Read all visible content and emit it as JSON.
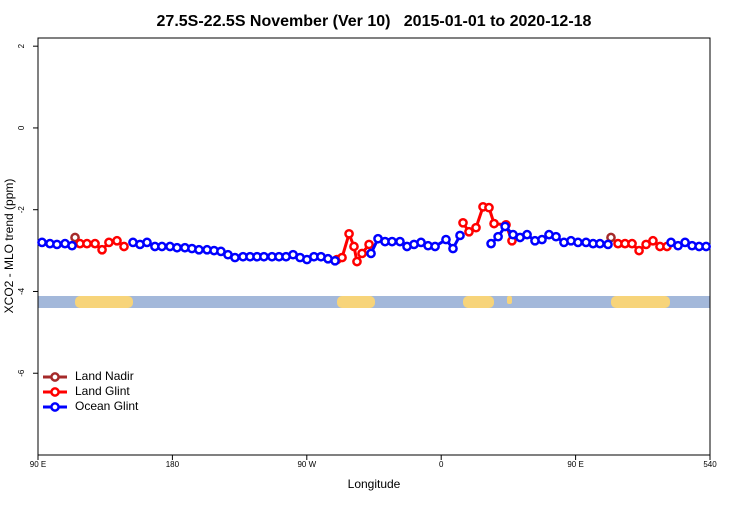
{
  "chart_data": {
    "type": "line",
    "title": "27.5S-22.5S November (Ver 10)   2015-01-01 to 2020-12-18",
    "x_label": "Longitude",
    "y_label": "XCO2 - MLO trend (ppm)",
    "xlim": [
      90,
      540
    ],
    "ylim": [
      -8,
      2.2
    ],
    "xticks": [
      {
        "value": 90,
        "label": "90 E"
      },
      180,
      {
        "value": 270,
        "label": "90 W"
      },
      {
        "value": 360,
        "label": "0"
      },
      {
        "value": 450,
        "label": "90 E"
      },
      540
    ],
    "yticks": [
      2,
      0,
      -2,
      -4,
      -6
    ],
    "legend": "bottom-left",
    "series": [
      {
        "name": "Land Nadir",
        "color": "#a52a2a",
        "x": [
          114.8,
          300,
          473.7
        ],
        "values": [
          -2.68,
          null,
          -2.68
        ]
      },
      {
        "name": "Land Glint",
        "color": "#ff0000",
        "x": [
          118.1,
          122.8,
          128.2,
          132.9,
          137.5,
          142.9,
          147.6,
          150,
          290.2,
          293.6,
          298.3,
          301.6,
          303.6,
          307.0,
          311.7,
          340,
          374.6,
          378.6,
          383.3,
          388.0,
          392.0,
          395.4,
          403.4,
          407.4,
          440,
          478.4,
          483.1,
          487.8,
          492.5,
          497.2,
          501.8,
          506.5,
          511.2
        ],
        "values": [
          -2.83,
          -2.83,
          -2.83,
          -2.98,
          -2.8,
          -2.76,
          -2.9,
          null,
          -3.22,
          -3.17,
          -2.59,
          -2.9,
          -3.27,
          -3.07,
          -2.85,
          null,
          -2.32,
          -2.54,
          -2.44,
          -1.93,
          -1.95,
          -2.34,
          -2.37,
          -2.76,
          null,
          -2.83,
          -2.83,
          -2.83,
          -3.0,
          -2.85,
          -2.76,
          -2.9,
          -2.9
        ]
      },
      {
        "name": "Ocean Glint",
        "color": "#0000ff",
        "x": [
          92.7,
          98.0,
          102.7,
          108.1,
          112.8,
          130,
          153.6,
          158.3,
          163.0,
          168.3,
          173.0,
          178.4,
          183.1,
          188.4,
          193.1,
          197.8,
          203.2,
          207.9,
          212.5,
          217.2,
          221.9,
          227.3,
          232.0,
          236.7,
          241.3,
          246.7,
          251.4,
          256.1,
          260.8,
          265.5,
          270.1,
          274.8,
          279.5,
          284.2,
          288.9,
          300,
          313.0,
          317.7,
          322.4,
          327.1,
          332.4,
          337.1,
          341.8,
          346.5,
          351.2,
          355.9,
          363.2,
          367.9,
          372.6,
          385,
          393.4,
          398.1,
          402.8,
          408.1,
          412.8,
          417.5,
          422.8,
          427.5,
          432.2,
          436.9,
          442.2,
          446.9,
          451.6,
          457.0,
          461.7,
          466.3,
          471.7,
          490,
          513.9,
          518.6,
          523.3,
          528.0,
          532.7,
          537.4
        ],
        "values": [
          -2.8,
          -2.83,
          -2.85,
          -2.83,
          -2.88,
          null,
          -2.8,
          -2.85,
          -2.8,
          -2.9,
          -2.9,
          -2.9,
          -2.93,
          -2.93,
          -2.95,
          -2.98,
          -2.98,
          -3.0,
          -3.02,
          -3.1,
          -3.17,
          -3.15,
          -3.15,
          -3.15,
          -3.15,
          -3.15,
          -3.15,
          -3.15,
          -3.1,
          -3.17,
          -3.22,
          -3.15,
          -3.15,
          -3.2,
          -3.25,
          null,
          -3.07,
          -2.71,
          -2.78,
          -2.78,
          -2.78,
          -2.9,
          -2.85,
          -2.8,
          -2.88,
          -2.9,
          -2.73,
          -2.95,
          -2.63,
          null,
          -2.83,
          -2.66,
          -2.41,
          -2.61,
          -2.68,
          -2.61,
          -2.76,
          -2.73,
          -2.61,
          -2.66,
          -2.8,
          -2.76,
          -2.8,
          -2.8,
          -2.83,
          -2.83,
          -2.85,
          null,
          -2.8,
          -2.88,
          -2.8,
          -2.88,
          -2.9,
          -2.9
        ]
      }
    ]
  }
}
